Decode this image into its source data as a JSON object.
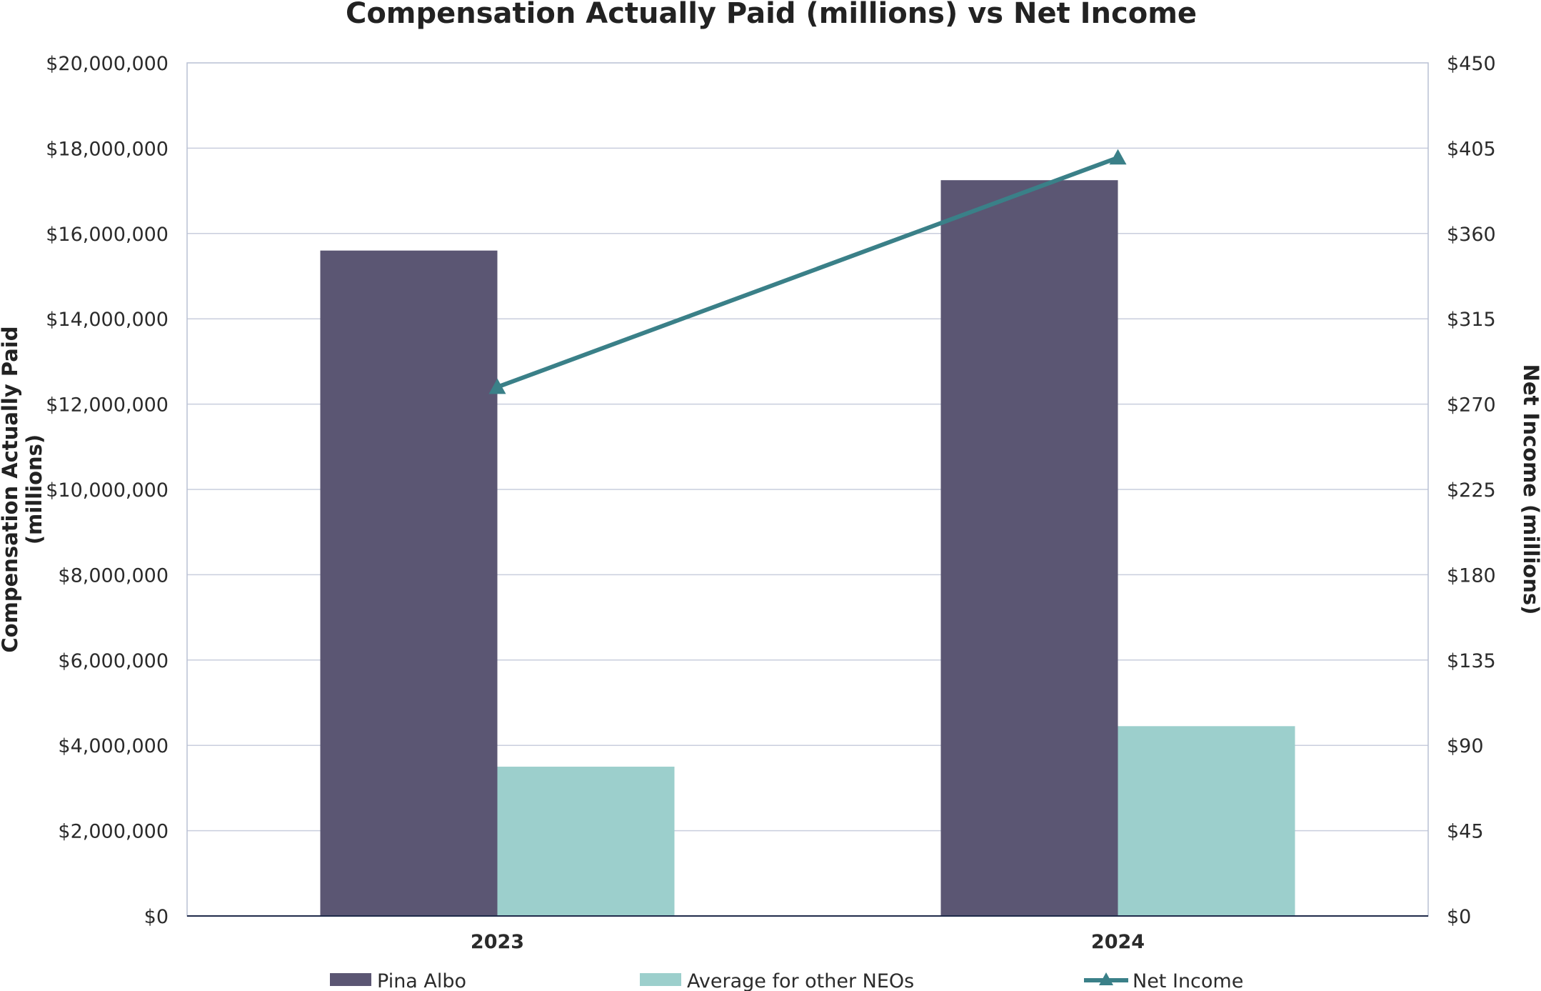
{
  "chart_data": {
    "type": "bar",
    "title": "Compensation Actually Paid (millions) vs Net Income",
    "categories": [
      "2023",
      "2024"
    ],
    "y_left": {
      "label_lines": [
        "Compensation Actually Paid",
        "(millions)"
      ],
      "ylim": [
        0,
        20000000
      ],
      "ticks": [
        "$0",
        "$2,000,000",
        "$4,000,000",
        "$6,000,000",
        "$8,000,000",
        "$10,000,000",
        "$12,000,000",
        "$14,000,000",
        "$16,000,000",
        "$18,000,000",
        "$20,000,000"
      ]
    },
    "y_right": {
      "label": "Net Income (millions)",
      "ylim": [
        0,
        450
      ],
      "ticks": [
        "$0",
        "$45",
        "$90",
        "$135",
        "$180",
        "$225",
        "$270",
        "$315",
        "$360",
        "$405",
        "$450"
      ]
    },
    "series": [
      {
        "name": "Pina Albo",
        "type": "bar",
        "axis": "left",
        "color": "#5b5673",
        "values": [
          15600000,
          17250000
        ]
      },
      {
        "name": "Average for other NEOs",
        "type": "bar",
        "axis": "left",
        "color": "#9ccfcc",
        "values": [
          3500000,
          4450000
        ]
      },
      {
        "name": "Net Income",
        "type": "line",
        "axis": "right",
        "marker": "triangle",
        "color": "#3a8088",
        "values": [
          279,
          400
        ]
      }
    ],
    "grid": true,
    "legend": "bottom"
  }
}
